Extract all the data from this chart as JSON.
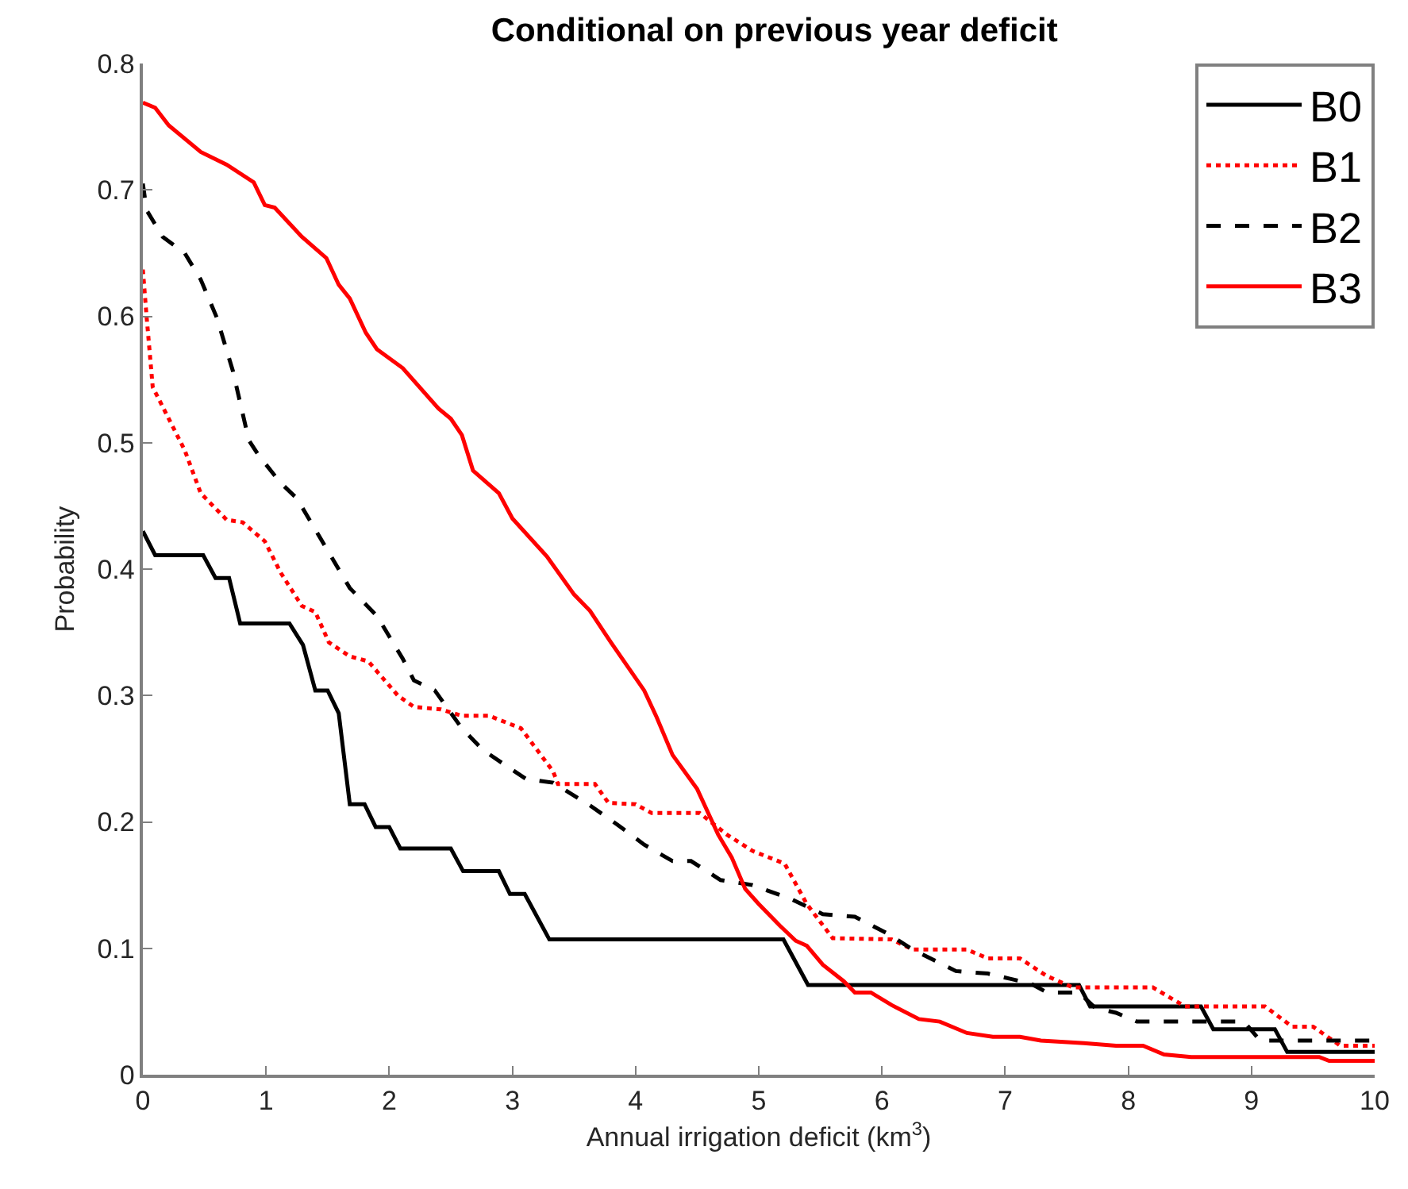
{
  "chart_data": {
    "type": "line",
    "title": "Conditional on previous year deficit",
    "xlabel": "Annual irrigation deficit (km$^{3}$)",
    "ylabel": "Probability",
    "xlim": [
      0,
      10
    ],
    "xticks": [
      0,
      1,
      2,
      3,
      4,
      5,
      6,
      7,
      8,
      9,
      10
    ],
    "ylim": [
      0,
      0.8
    ],
    "yticks": [
      0,
      0.1,
      0.2,
      0.3,
      0.4,
      0.5,
      0.6,
      0.7,
      0.8
    ],
    "legend": "top right",
    "marker": "none",
    "series": [
      {
        "name": "B0",
        "color": "#000000",
        "line_style": "solid",
        "x": [
          0,
          0.1,
          0.49,
          0.59,
          0.7,
          0.79,
          1.19,
          1.3,
          1.4,
          1.5,
          1.59,
          1.68,
          1.8,
          1.89,
          2.0,
          2.09,
          2.5,
          2.6,
          2.89,
          2.98,
          3.1,
          3.3,
          5.2,
          5.4,
          7.6,
          7.69,
          8.59,
          8.69,
          9.19,
          9.29,
          10
        ],
        "values": [
          0.43,
          0.411,
          0.411,
          0.393,
          0.393,
          0.357,
          0.357,
          0.34,
          0.304,
          0.304,
          0.286,
          0.214,
          0.214,
          0.196,
          0.196,
          0.179,
          0.179,
          0.161,
          0.161,
          0.143,
          0.143,
          0.107,
          0.107,
          0.071,
          0.071,
          0.054,
          0.054,
          0.036,
          0.036,
          0.018,
          0.018
        ]
      },
      {
        "name": "B1",
        "color": "#ff0000",
        "line_style": "dotted",
        "x": [
          0,
          0.03,
          0.08,
          0.34,
          0.47,
          0.68,
          0.81,
          0.99,
          1.12,
          1.29,
          1.4,
          1.51,
          1.68,
          1.83,
          2.07,
          2.2,
          2.42,
          2.59,
          2.81,
          3.07,
          3.33,
          3.37,
          3.67,
          3.78,
          4.0,
          4.13,
          4.52,
          4.74,
          4.95,
          5.21,
          5.39,
          5.6,
          6.08,
          6.25,
          6.69,
          6.86,
          7.12,
          7.34,
          7.55,
          8.2,
          8.46,
          9.11,
          9.33,
          9.5,
          9.72,
          10
        ],
        "values": [
          0.637,
          0.6,
          0.544,
          0.494,
          0.46,
          0.439,
          0.437,
          0.422,
          0.397,
          0.371,
          0.366,
          0.342,
          0.331,
          0.327,
          0.3,
          0.291,
          0.289,
          0.284,
          0.284,
          0.274,
          0.24,
          0.23,
          0.23,
          0.215,
          0.214,
          0.207,
          0.207,
          0.19,
          0.177,
          0.167,
          0.135,
          0.108,
          0.107,
          0.099,
          0.099,
          0.092,
          0.092,
          0.078,
          0.069,
          0.069,
          0.054,
          0.054,
          0.038,
          0.038,
          0.023,
          0.023
        ]
      },
      {
        "name": "B2",
        "color": "#000000",
        "line_style": "dashed",
        "x": [
          0,
          0.03,
          0.16,
          0.34,
          0.47,
          0.6,
          0.73,
          0.86,
          0.94,
          1.12,
          1.25,
          1.42,
          1.68,
          1.9,
          2.11,
          2.2,
          2.37,
          2.59,
          2.76,
          2.94,
          3.11,
          3.33,
          3.63,
          3.85,
          4.07,
          4.3,
          4.45,
          4.69,
          4.95,
          5.26,
          5.52,
          5.78,
          6.04,
          6.25,
          6.6,
          6.86,
          7.21,
          7.34,
          7.6,
          7.73,
          7.9,
          8.07,
          8.94,
          9.07,
          10
        ],
        "values": [
          0.705,
          0.684,
          0.663,
          0.65,
          0.629,
          0.599,
          0.557,
          0.502,
          0.49,
          0.468,
          0.456,
          0.428,
          0.385,
          0.363,
          0.329,
          0.312,
          0.304,
          0.274,
          0.257,
          0.245,
          0.234,
          0.231,
          0.213,
          0.198,
          0.182,
          0.169,
          0.169,
          0.154,
          0.15,
          0.139,
          0.127,
          0.125,
          0.112,
          0.099,
          0.082,
          0.08,
          0.072,
          0.065,
          0.065,
          0.053,
          0.049,
          0.042,
          0.042,
          0.027,
          0.027
        ]
      },
      {
        "name": "B3",
        "color": "#ff0000",
        "line_style": "solid",
        "x": [
          0,
          0.1,
          0.21,
          0.47,
          0.68,
          0.9,
          0.99,
          1.07,
          1.29,
          1.49,
          1.59,
          1.68,
          1.81,
          1.9,
          2.11,
          2.4,
          2.5,
          2.59,
          2.68,
          2.89,
          3.0,
          3.28,
          3.5,
          3.63,
          3.8,
          4.07,
          4.17,
          4.3,
          4.5,
          4.67,
          4.78,
          4.89,
          5.0,
          5.17,
          5.3,
          5.39,
          5.52,
          5.69,
          5.78,
          5.91,
          6.08,
          6.3,
          6.47,
          6.69,
          6.9,
          7.12,
          7.29,
          7.64,
          7.9,
          8.12,
          8.29,
          8.51,
          9.55,
          9.63,
          10
        ],
        "values": [
          0.769,
          0.765,
          0.751,
          0.73,
          0.72,
          0.706,
          0.688,
          0.686,
          0.663,
          0.646,
          0.625,
          0.614,
          0.587,
          0.574,
          0.559,
          0.527,
          0.519,
          0.506,
          0.478,
          0.46,
          0.44,
          0.41,
          0.38,
          0.367,
          0.342,
          0.304,
          0.283,
          0.253,
          0.226,
          0.19,
          0.172,
          0.147,
          0.135,
          0.118,
          0.106,
          0.102,
          0.087,
          0.074,
          0.065,
          0.065,
          0.055,
          0.044,
          0.042,
          0.033,
          0.03,
          0.03,
          0.027,
          0.025,
          0.023,
          0.023,
          0.016,
          0.014,
          0.014,
          0.011,
          0.011
        ]
      }
    ]
  }
}
